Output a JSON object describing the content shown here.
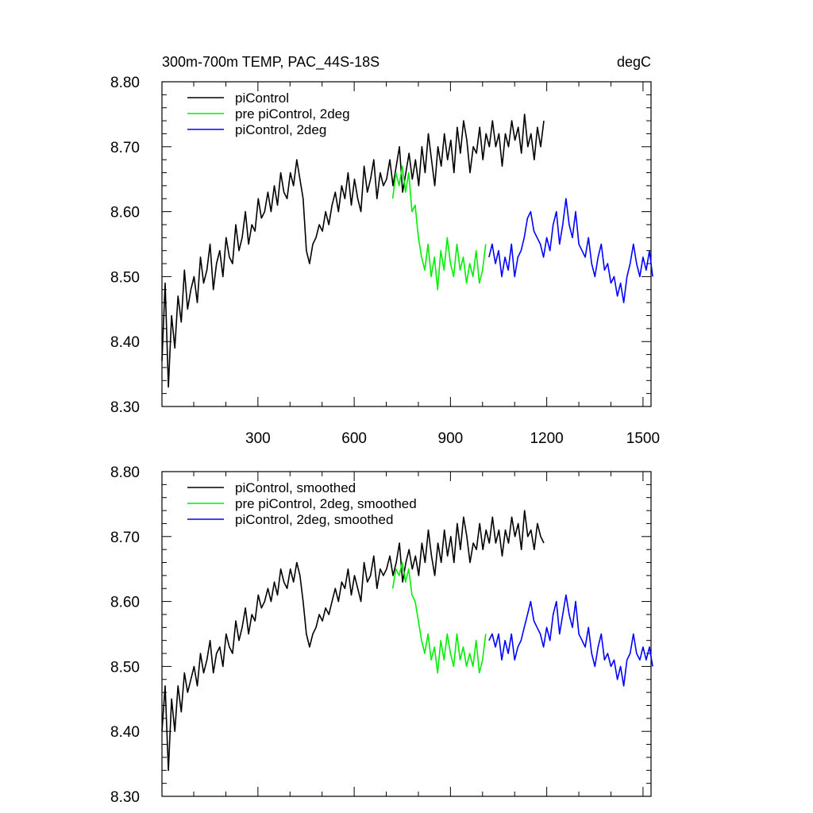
{
  "header": {
    "title": "300m-700m TEMP, PAC_44S-18S",
    "units": "degC"
  },
  "colors": {
    "piControl": "#000000",
    "pre_piControl_2deg": "#00ee00",
    "piControl_2deg": "#0000ff",
    "axis": "#000000"
  },
  "chart_data": [
    {
      "type": "line",
      "panel": "top",
      "xlim": [
        1,
        1525
      ],
      "ylim": [
        8.3,
        8.8
      ],
      "xticks": [
        300,
        600,
        900,
        1200,
        1500
      ],
      "xtick_labels": [
        "300",
        "600",
        "900",
        "1200",
        "1500"
      ],
      "yticks": [
        8.3,
        8.4,
        8.5,
        8.6,
        8.7,
        8.8
      ],
      "ytick_labels": [
        "8.30",
        "8.40",
        "8.50",
        "8.60",
        "8.70",
        "8.80"
      ],
      "legend_position": "top-left",
      "series": [
        {
          "name": "piControl",
          "color": "#000000",
          "x_start": 1,
          "x_step": 10,
          "values": [
            8.37,
            8.49,
            8.33,
            8.44,
            8.39,
            8.47,
            8.43,
            8.51,
            8.45,
            8.48,
            8.5,
            8.46,
            8.53,
            8.49,
            8.51,
            8.55,
            8.48,
            8.52,
            8.54,
            8.5,
            8.56,
            8.53,
            8.52,
            8.58,
            8.54,
            8.56,
            8.6,
            8.55,
            8.58,
            8.57,
            8.62,
            8.59,
            8.6,
            8.63,
            8.6,
            8.64,
            8.61,
            8.66,
            8.63,
            8.62,
            8.66,
            8.64,
            8.68,
            8.65,
            8.62,
            8.54,
            8.52,
            8.55,
            8.56,
            8.58,
            8.57,
            8.6,
            8.58,
            8.61,
            8.63,
            8.6,
            8.64,
            8.62,
            8.66,
            8.61,
            8.65,
            8.62,
            8.6,
            8.67,
            8.63,
            8.65,
            8.68,
            8.62,
            8.66,
            8.64,
            8.65,
            8.68,
            8.64,
            8.67,
            8.7,
            8.63,
            8.66,
            8.69,
            8.65,
            8.68,
            8.64,
            8.7,
            8.66,
            8.72,
            8.68,
            8.64,
            8.7,
            8.67,
            8.72,
            8.68,
            8.71,
            8.66,
            8.73,
            8.69,
            8.74,
            8.71,
            8.66,
            8.7,
            8.69,
            8.73,
            8.68,
            8.72,
            8.7,
            8.74,
            8.7,
            8.72,
            8.67,
            8.72,
            8.7,
            8.74,
            8.71,
            8.73,
            8.69,
            8.75,
            8.7,
            8.72,
            8.68,
            8.73,
            8.7,
            8.74
          ]
        },
        {
          "name": "pre piControl, 2deg",
          "color": "#00ee00",
          "x_start": 720,
          "x_step": 10,
          "values": [
            8.62,
            8.66,
            8.64,
            8.67,
            8.63,
            8.66,
            8.6,
            8.61,
            8.56,
            8.53,
            8.51,
            8.55,
            8.5,
            8.53,
            8.48,
            8.54,
            8.51,
            8.56,
            8.52,
            8.5,
            8.55,
            8.51,
            8.53,
            8.49,
            8.52,
            8.5,
            8.54,
            8.49,
            8.51,
            8.55
          ]
        },
        {
          "name": "piControl, 2deg",
          "color": "#0000ff",
          "x_start": 1020,
          "x_step": 10,
          "values": [
            8.53,
            8.55,
            8.52,
            8.54,
            8.5,
            8.53,
            8.51,
            8.55,
            8.5,
            8.53,
            8.54,
            8.56,
            8.59,
            8.6,
            8.57,
            8.56,
            8.55,
            8.53,
            8.56,
            8.54,
            8.58,
            8.6,
            8.55,
            8.58,
            8.62,
            8.58,
            8.56,
            8.6,
            8.55,
            8.54,
            8.53,
            8.56,
            8.52,
            8.5,
            8.53,
            8.55,
            8.51,
            8.52,
            8.49,
            8.5,
            8.47,
            8.49,
            8.46,
            8.5,
            8.52,
            8.55,
            8.52,
            8.5,
            8.53,
            8.51,
            8.54,
            8.5
          ]
        }
      ]
    },
    {
      "type": "line",
      "panel": "bottom",
      "xlim": [
        1,
        1525
      ],
      "ylim": [
        8.3,
        8.8
      ],
      "xticks": [
        300,
        600,
        900,
        1200,
        1500
      ],
      "xtick_labels": [],
      "yticks": [
        8.3,
        8.4,
        8.5,
        8.6,
        8.7,
        8.8
      ],
      "ytick_labels": [
        "8.30",
        "8.40",
        "8.50",
        "8.60",
        "8.70",
        "8.80"
      ],
      "legend_position": "top-left",
      "series": [
        {
          "name": "piControl, smoothed",
          "color": "#000000",
          "x_start": 1,
          "x_step": 10,
          "values": [
            8.4,
            8.47,
            8.34,
            8.45,
            8.4,
            8.47,
            8.43,
            8.49,
            8.46,
            8.48,
            8.5,
            8.47,
            8.52,
            8.49,
            8.51,
            8.54,
            8.49,
            8.52,
            8.53,
            8.5,
            8.55,
            8.53,
            8.52,
            8.57,
            8.54,
            8.56,
            8.59,
            8.55,
            8.58,
            8.57,
            8.61,
            8.59,
            8.6,
            8.62,
            8.6,
            8.63,
            8.61,
            8.65,
            8.63,
            8.62,
            8.65,
            8.63,
            8.66,
            8.64,
            8.6,
            8.55,
            8.53,
            8.55,
            8.56,
            8.58,
            8.57,
            8.59,
            8.58,
            8.6,
            8.62,
            8.6,
            8.63,
            8.62,
            8.65,
            8.61,
            8.64,
            8.62,
            8.6,
            8.66,
            8.63,
            8.64,
            8.67,
            8.62,
            8.65,
            8.64,
            8.65,
            8.67,
            8.64,
            8.66,
            8.69,
            8.63,
            8.66,
            8.68,
            8.65,
            8.67,
            8.64,
            8.69,
            8.66,
            8.71,
            8.67,
            8.64,
            8.69,
            8.66,
            8.71,
            8.67,
            8.7,
            8.66,
            8.72,
            8.68,
            8.73,
            8.7,
            8.66,
            8.69,
            8.68,
            8.72,
            8.68,
            8.71,
            8.69,
            8.73,
            8.69,
            8.71,
            8.67,
            8.71,
            8.69,
            8.73,
            8.7,
            8.72,
            8.68,
            8.74,
            8.7,
            8.71,
            8.68,
            8.72,
            8.7,
            8.69
          ]
        },
        {
          "name": "pre piControl, 2deg, smoothed",
          "color": "#00ee00",
          "x_start": 720,
          "x_step": 10,
          "values": [
            8.62,
            8.65,
            8.64,
            8.66,
            8.63,
            8.65,
            8.61,
            8.6,
            8.57,
            8.54,
            8.52,
            8.55,
            8.51,
            8.53,
            8.49,
            8.54,
            8.51,
            8.55,
            8.52,
            8.5,
            8.55,
            8.51,
            8.53,
            8.5,
            8.52,
            8.5,
            8.54,
            8.49,
            8.51,
            8.55
          ]
        },
        {
          "name": "piControl, 2deg, smoothed",
          "color": "#0000ff",
          "x_start": 1020,
          "x_step": 10,
          "values": [
            8.54,
            8.55,
            8.53,
            8.55,
            8.51,
            8.54,
            8.52,
            8.55,
            8.51,
            8.53,
            8.54,
            8.56,
            8.58,
            8.6,
            8.57,
            8.56,
            8.55,
            8.53,
            8.56,
            8.54,
            8.58,
            8.6,
            8.55,
            8.58,
            8.61,
            8.58,
            8.56,
            8.6,
            8.55,
            8.54,
            8.53,
            8.56,
            8.52,
            8.5,
            8.53,
            8.55,
            8.51,
            8.52,
            8.5,
            8.51,
            8.48,
            8.5,
            8.47,
            8.51,
            8.52,
            8.55,
            8.52,
            8.51,
            8.53,
            8.51,
            8.53,
            8.5
          ]
        }
      ]
    }
  ]
}
